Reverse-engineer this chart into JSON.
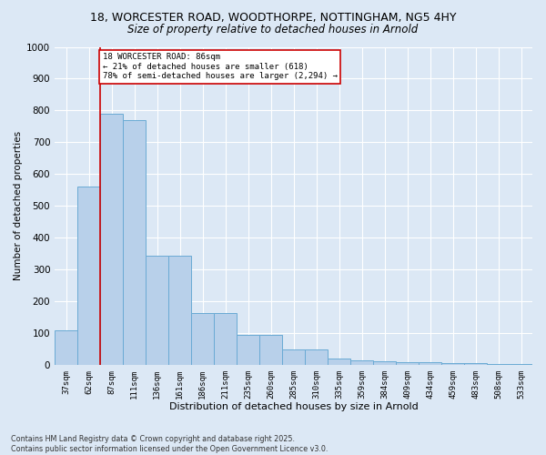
{
  "title_line1": "18, WORCESTER ROAD, WOODTHORPE, NOTTINGHAM, NG5 4HY",
  "title_line2": "Size of property relative to detached houses in Arnold",
  "xlabel": "Distribution of detached houses by size in Arnold",
  "ylabel": "Number of detached properties",
  "categories": [
    "37sqm",
    "62sqm",
    "87sqm",
    "111sqm",
    "136sqm",
    "161sqm",
    "186sqm",
    "211sqm",
    "235sqm",
    "260sqm",
    "285sqm",
    "310sqm",
    "335sqm",
    "359sqm",
    "384sqm",
    "409sqm",
    "434sqm",
    "459sqm",
    "483sqm",
    "508sqm",
    "533sqm"
  ],
  "values": [
    110,
    560,
    790,
    770,
    345,
    345,
    165,
    165,
    95,
    95,
    50,
    50,
    20,
    15,
    12,
    10,
    8,
    5,
    5,
    3,
    3
  ],
  "bar_color": "#b8d0ea",
  "bar_edge_color": "#6aaad4",
  "vline_color": "#cc0000",
  "annotation_text": "18 WORCESTER ROAD: 86sqm\n← 21% of detached houses are smaller (618)\n78% of semi-detached houses are larger (2,294) →",
  "annotation_box_edgecolor": "#cc0000",
  "ylim": [
    0,
    1000
  ],
  "yticks": [
    0,
    100,
    200,
    300,
    400,
    500,
    600,
    700,
    800,
    900,
    1000
  ],
  "bg_color": "#dce8f5",
  "grid_color": "#ffffff",
  "title_fontsize": 9,
  "subtitle_fontsize": 8.5,
  "footer_line1": "Contains HM Land Registry data © Crown copyright and database right 2025.",
  "footer_line2": "Contains public sector information licensed under the Open Government Licence v3.0."
}
